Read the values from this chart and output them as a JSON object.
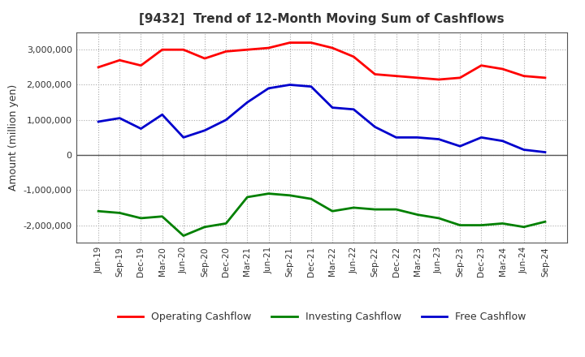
{
  "title": "[9432]  Trend of 12-Month Moving Sum of Cashflows",
  "ylabel": "Amount (million yen)",
  "background_color": "#ffffff",
  "grid_color": "#aaaaaa",
  "x_labels": [
    "Jun-19",
    "Sep-19",
    "Dec-19",
    "Mar-20",
    "Jun-20",
    "Sep-20",
    "Dec-20",
    "Mar-21",
    "Jun-21",
    "Sep-21",
    "Dec-21",
    "Mar-22",
    "Jun-22",
    "Sep-22",
    "Dec-22",
    "Mar-23",
    "Jun-23",
    "Sep-23",
    "Dec-23",
    "Mar-24",
    "Jun-24",
    "Sep-24"
  ],
  "operating": [
    2500000,
    2700000,
    2550000,
    3000000,
    3000000,
    2750000,
    2950000,
    3000000,
    3050000,
    3200000,
    3200000,
    3050000,
    2800000,
    2300000,
    2250000,
    2200000,
    2150000,
    2200000,
    2550000,
    2450000,
    2250000,
    2200000
  ],
  "investing": [
    -1600000,
    -1650000,
    -1800000,
    -1750000,
    -2300000,
    -2050000,
    -1950000,
    -1200000,
    -1100000,
    -1150000,
    -1250000,
    -1600000,
    -1500000,
    -1550000,
    -1550000,
    -1700000,
    -1800000,
    -2000000,
    -2000000,
    -1950000,
    -2050000,
    -1900000
  ],
  "free": [
    950000,
    1050000,
    750000,
    1150000,
    500000,
    700000,
    1000000,
    1500000,
    1900000,
    2000000,
    1950000,
    1350000,
    1300000,
    800000,
    500000,
    500000,
    450000,
    250000,
    500000,
    400000,
    150000,
    80000
  ],
  "ylim": [
    -2500000,
    3500000
  ],
  "yticks": [
    -2000000,
    -1000000,
    0,
    1000000,
    2000000,
    3000000
  ],
  "op_color": "#ff0000",
  "inv_color": "#008000",
  "free_color": "#0000cd",
  "line_width": 2.0,
  "title_color": "#333333",
  "label_color": "#333333"
}
